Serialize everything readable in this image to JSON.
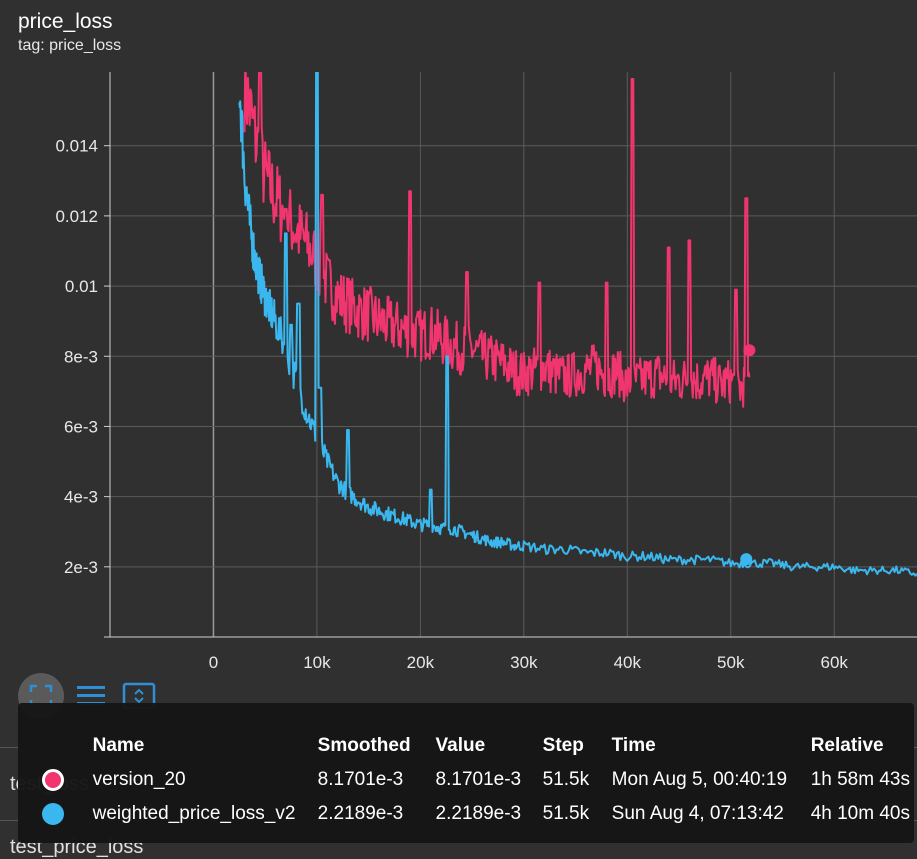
{
  "header": {
    "title": "price_loss",
    "subtitle": "tag: price_loss"
  },
  "colors": {
    "background": "#303030",
    "version_20": "#f0356f",
    "weighted_price_loss_v2": "#3ab7ee",
    "grid": "#5a5a5a"
  },
  "toolbar": {
    "icons": [
      "fit-domain-icon",
      "toggle-y-log-icon",
      "expand-chart-icon"
    ]
  },
  "background_cards": {
    "prev_label": "test_loss",
    "next_label": "test_price_loss"
  },
  "tooltip": {
    "columns": [
      "Name",
      "Smoothed",
      "Value",
      "Step",
      "Time",
      "Relative"
    ],
    "rows": [
      {
        "name": "version_20",
        "smoothed": "8.1701e-3",
        "value": "8.1701e-3",
        "step": "51.5k",
        "time": "Mon Aug 5, 00:40:19",
        "relative": "1h 58m 43s",
        "color": "#f0356f"
      },
      {
        "name": "weighted_price_loss_v2",
        "smoothed": "2.2189e-3",
        "value": "2.2189e-3",
        "step": "51.5k",
        "time": "Sun Aug 4, 07:13:42",
        "relative": "4h 10m 40s",
        "color": "#3ab7ee"
      }
    ]
  },
  "chart_data": {
    "type": "line",
    "title": "price_loss",
    "subtitle": "tag: price_loss",
    "xlabel": "",
    "ylabel": "",
    "xlim": [
      -10000,
      68000
    ],
    "ylim": [
      0,
      0.0161
    ],
    "x_ticks": [
      0,
      10000,
      20000,
      30000,
      40000,
      50000,
      60000
    ],
    "x_tick_labels": [
      "0",
      "10k",
      "20k",
      "30k",
      "40k",
      "50k",
      "60k"
    ],
    "y_ticks": [
      0.002,
      0.004,
      0.006,
      0.008,
      0.01,
      0.012,
      0.014
    ],
    "y_tick_labels": [
      "2e-3",
      "4e-3",
      "6e-3",
      "8e-3",
      "0.01",
      "0.012",
      "0.014"
    ],
    "grid": true,
    "series": [
      {
        "name": "version_20",
        "color": "#f0356f",
        "x": [
          3000,
          4000,
          5000,
          6000,
          7000,
          8000,
          9000,
          10000,
          11000,
          12000,
          13000,
          14000,
          15000,
          16000,
          17000,
          18000,
          19000,
          20000,
          21000,
          22000,
          23000,
          24000,
          25000,
          26000,
          27000,
          28000,
          29000,
          30000,
          31000,
          32000,
          33000,
          34000,
          35000,
          36000,
          37000,
          38000,
          39000,
          40000,
          41000,
          42000,
          43000,
          44000,
          45000,
          46000,
          47000,
          48000,
          49000,
          50000,
          51000,
          51800
        ],
        "y": [
          0.0158,
          0.0143,
          0.0131,
          0.0125,
          0.012,
          0.0116,
          0.0112,
          0.0107,
          0.0101,
          0.0097,
          0.0095,
          0.0093,
          0.0092,
          0.009,
          0.0089,
          0.0088,
          0.0087,
          0.0086,
          0.0087,
          0.0085,
          0.0083,
          0.0082,
          0.0082,
          0.008,
          0.0079,
          0.0078,
          0.0076,
          0.0075,
          0.0076,
          0.0077,
          0.0075,
          0.0074,
          0.0075,
          0.0076,
          0.0077,
          0.0074,
          0.0076,
          0.0072,
          0.0073,
          0.0074,
          0.0075,
          0.0073,
          0.0073,
          0.0074,
          0.0073,
          0.0074,
          0.0072,
          0.0073,
          0.0071,
          0.0074
        ],
        "spikes": [
          [
            4500,
            0.0166
          ],
          [
            7000,
            0.0122
          ],
          [
            10500,
            0.0126
          ],
          [
            19000,
            0.0127
          ],
          [
            24500,
            0.0104
          ],
          [
            31500,
            0.0101
          ],
          [
            38000,
            0.0101
          ],
          [
            40500,
            0.0159
          ],
          [
            44000,
            0.0111
          ],
          [
            46000,
            0.0113
          ],
          [
            50500,
            0.0099
          ],
          [
            51500,
            0.0125
          ]
        ],
        "endpoint": [
          51800,
          0.00817
        ]
      },
      {
        "name": "weighted_price_loss_v2",
        "color": "#3ab7ee",
        "x": [
          2500,
          3000,
          3500,
          4000,
          4500,
          5000,
          5500,
          6000,
          7000,
          8000,
          9000,
          10000,
          11000,
          12000,
          13000,
          14000,
          15000,
          16000,
          17000,
          18000,
          19000,
          20000,
          21000,
          22000,
          23000,
          24000,
          25000,
          26000,
          27000,
          28000,
          29000,
          30000,
          32000,
          34000,
          36000,
          38000,
          40000,
          42000,
          44000,
          46000,
          48000,
          50000,
          52000,
          54000,
          56000,
          58000,
          60000,
          62000,
          64000,
          66000,
          68000
        ],
        "y": [
          0.0158,
          0.0132,
          0.0118,
          0.0108,
          0.0102,
          0.0097,
          0.0093,
          0.009,
          0.0082,
          0.0073,
          0.0064,
          0.0057,
          0.005,
          0.0044,
          0.0041,
          0.0039,
          0.0037,
          0.0036,
          0.0035,
          0.0034,
          0.0033,
          0.0032,
          0.0032,
          0.0031,
          0.0031,
          0.003,
          0.0029,
          0.0028,
          0.0027,
          0.0027,
          0.0026,
          0.0026,
          0.0025,
          0.0025,
          0.0024,
          0.0024,
          0.0023,
          0.0023,
          0.0022,
          0.0022,
          0.0022,
          0.0021,
          0.0021,
          0.0021,
          0.002,
          0.002,
          0.002,
          0.0019,
          0.0019,
          0.0019,
          0.0018
        ],
        "spikes": [
          [
            7000,
            0.0115
          ],
          [
            7500,
            0.0089
          ],
          [
            8200,
            0.0095
          ],
          [
            10000,
            0.0161
          ],
          [
            10300,
            0.0071
          ],
          [
            13000,
            0.0059
          ],
          [
            21000,
            0.0042
          ],
          [
            22600,
            0.008
          ]
        ],
        "endpoint": [
          51500,
          0.00222
        ]
      }
    ]
  }
}
